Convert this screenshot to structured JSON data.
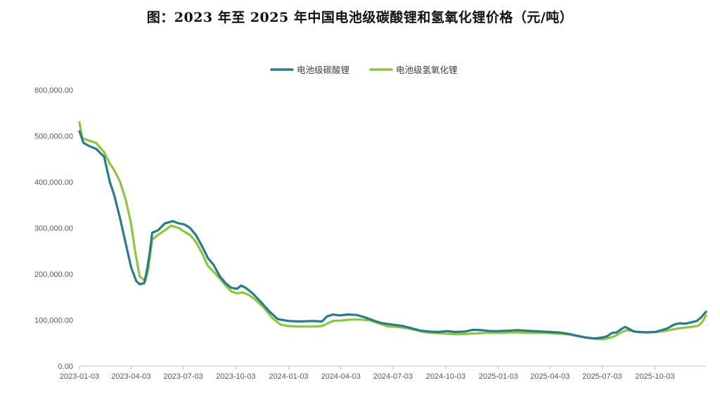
{
  "title": "图：2023 年至 2025 年中国电池级碳酸锂和氢氧化锂价格（元/吨）",
  "chart_data": {
    "type": "line",
    "title": "图：2023 年至 2025 年中国电池级碳酸锂和氢氧化锂价格（元/吨）",
    "xlabel": "",
    "ylabel": "",
    "ylim": [
      0,
      600000
    ],
    "yticks": [
      "0.00",
      "100,000.00",
      "200,000.00",
      "300,000.00",
      "400,000.00",
      "500,000.00",
      "600,000.00"
    ],
    "xticks": [
      "2023-01-03",
      "2023-04-03",
      "2023-07-03",
      "2023-10-03",
      "2024-01-03",
      "2024-04-03",
      "2024-07-03",
      "2024-10-03",
      "2025-01-03",
      "2025-04-03",
      "2025-07-03",
      "2025-10-03"
    ],
    "x_range": [
      "2023-01-03",
      "2025-12-31"
    ],
    "grid": false,
    "legend_position": "top-center",
    "series": [
      {
        "name": "电池级碳酸锂",
        "color": "#2a7a8c",
        "points": [
          [
            "2023-01-03",
            510000
          ],
          [
            "2023-01-10",
            485000
          ],
          [
            "2023-01-20",
            478000
          ],
          [
            "2023-02-01",
            472000
          ],
          [
            "2023-02-15",
            455000
          ],
          [
            "2023-02-25",
            400000
          ],
          [
            "2023-03-05",
            370000
          ],
          [
            "2023-03-15",
            320000
          ],
          [
            "2023-03-25",
            265000
          ],
          [
            "2023-04-03",
            215000
          ],
          [
            "2023-04-12",
            185000
          ],
          [
            "2023-04-18",
            178000
          ],
          [
            "2023-04-26",
            180000
          ],
          [
            "2023-05-01",
            210000
          ],
          [
            "2023-05-06",
            250000
          ],
          [
            "2023-05-10",
            290000
          ],
          [
            "2023-05-20",
            295000
          ],
          [
            "2023-06-01",
            310000
          ],
          [
            "2023-06-15",
            315000
          ],
          [
            "2023-06-25",
            310000
          ],
          [
            "2023-07-05",
            308000
          ],
          [
            "2023-07-15",
            300000
          ],
          [
            "2023-07-25",
            285000
          ],
          [
            "2023-08-05",
            260000
          ],
          [
            "2023-08-15",
            235000
          ],
          [
            "2023-08-25",
            220000
          ],
          [
            "2023-09-05",
            195000
          ],
          [
            "2023-09-15",
            180000
          ],
          [
            "2023-09-25",
            170000
          ],
          [
            "2023-10-05",
            168000
          ],
          [
            "2023-10-12",
            175000
          ],
          [
            "2023-10-20",
            170000
          ],
          [
            "2023-11-01",
            158000
          ],
          [
            "2023-11-15",
            140000
          ],
          [
            "2023-12-01",
            118000
          ],
          [
            "2023-12-15",
            102000
          ],
          [
            "2024-01-03",
            98000
          ],
          [
            "2024-01-20",
            97000
          ],
          [
            "2024-02-15",
            98000
          ],
          [
            "2024-03-01",
            97000
          ],
          [
            "2024-03-10",
            108000
          ],
          [
            "2024-03-20",
            112000
          ],
          [
            "2024-04-01",
            110000
          ],
          [
            "2024-04-15",
            112000
          ],
          [
            "2024-05-01",
            111000
          ],
          [
            "2024-05-15",
            106000
          ],
          [
            "2024-06-01",
            98000
          ],
          [
            "2024-06-15",
            93000
          ],
          [
            "2024-07-03",
            90000
          ],
          [
            "2024-07-20",
            87000
          ],
          [
            "2024-08-05",
            82000
          ],
          [
            "2024-08-20",
            77000
          ],
          [
            "2024-09-05",
            75000
          ],
          [
            "2024-09-20",
            74000
          ],
          [
            "2024-10-05",
            76000
          ],
          [
            "2024-10-20",
            74000
          ],
          [
            "2024-11-05",
            75000
          ],
          [
            "2024-11-20",
            79000
          ],
          [
            "2024-12-05",
            78000
          ],
          [
            "2024-12-20",
            76000
          ],
          [
            "2025-01-03",
            76000
          ],
          [
            "2025-01-20",
            77000
          ],
          [
            "2025-02-05",
            78000
          ],
          [
            "2025-02-20",
            77000
          ],
          [
            "2025-03-05",
            76000
          ],
          [
            "2025-03-20",
            75000
          ],
          [
            "2025-04-03",
            74000
          ],
          [
            "2025-04-20",
            73000
          ],
          [
            "2025-05-05",
            70000
          ],
          [
            "2025-05-20",
            66000
          ],
          [
            "2025-06-05",
            62000
          ],
          [
            "2025-06-20",
            60000
          ],
          [
            "2025-07-03",
            62000
          ],
          [
            "2025-07-12",
            65000
          ],
          [
            "2025-07-20",
            72000
          ],
          [
            "2025-07-28",
            73000
          ],
          [
            "2025-08-05",
            80000
          ],
          [
            "2025-08-12",
            85000
          ],
          [
            "2025-08-20",
            80000
          ],
          [
            "2025-08-28",
            75000
          ],
          [
            "2025-09-05",
            74000
          ],
          [
            "2025-09-20",
            73000
          ],
          [
            "2025-10-03",
            74000
          ],
          [
            "2025-10-15",
            78000
          ],
          [
            "2025-10-25",
            82000
          ],
          [
            "2025-11-05",
            90000
          ],
          [
            "2025-11-15",
            93000
          ],
          [
            "2025-11-25",
            92000
          ],
          [
            "2025-12-05",
            95000
          ],
          [
            "2025-12-15",
            98000
          ],
          [
            "2025-12-22",
            105000
          ],
          [
            "2025-12-31",
            118000
          ]
        ]
      },
      {
        "name": "电池级氢氧化锂",
        "color": "#8cc63f",
        "points": [
          [
            "2023-01-03",
            530000
          ],
          [
            "2023-01-08",
            495000
          ],
          [
            "2023-01-20",
            490000
          ],
          [
            "2023-02-01",
            485000
          ],
          [
            "2023-02-15",
            465000
          ],
          [
            "2023-02-25",
            440000
          ],
          [
            "2023-03-05",
            425000
          ],
          [
            "2023-03-15",
            400000
          ],
          [
            "2023-03-25",
            360000
          ],
          [
            "2023-04-03",
            310000
          ],
          [
            "2023-04-10",
            250000
          ],
          [
            "2023-04-18",
            195000
          ],
          [
            "2023-04-28",
            185000
          ],
          [
            "2023-05-03",
            210000
          ],
          [
            "2023-05-06",
            240000
          ],
          [
            "2023-05-10",
            275000
          ],
          [
            "2023-05-20",
            285000
          ],
          [
            "2023-06-01",
            295000
          ],
          [
            "2023-06-12",
            305000
          ],
          [
            "2023-06-25",
            300000
          ],
          [
            "2023-07-05",
            292000
          ],
          [
            "2023-07-15",
            285000
          ],
          [
            "2023-07-25",
            270000
          ],
          [
            "2023-08-05",
            245000
          ],
          [
            "2023-08-15",
            218000
          ],
          [
            "2023-08-25",
            205000
          ],
          [
            "2023-09-05",
            190000
          ],
          [
            "2023-09-15",
            175000
          ],
          [
            "2023-09-25",
            162000
          ],
          [
            "2023-10-05",
            158000
          ],
          [
            "2023-10-15",
            160000
          ],
          [
            "2023-10-25",
            155000
          ],
          [
            "2023-11-05",
            145000
          ],
          [
            "2023-11-20",
            128000
          ],
          [
            "2023-12-05",
            105000
          ],
          [
            "2023-12-20",
            90000
          ],
          [
            "2024-01-03",
            87000
          ],
          [
            "2024-01-20",
            86000
          ],
          [
            "2024-02-15",
            86000
          ],
          [
            "2024-03-01",
            87000
          ],
          [
            "2024-03-10",
            92000
          ],
          [
            "2024-03-20",
            98000
          ],
          [
            "2024-04-03",
            99000
          ],
          [
            "2024-04-20",
            101000
          ],
          [
            "2024-05-10",
            101000
          ],
          [
            "2024-05-25",
            99000
          ],
          [
            "2024-06-10",
            92000
          ],
          [
            "2024-06-25",
            86000
          ],
          [
            "2024-07-10",
            85000
          ],
          [
            "2024-07-25",
            83000
          ],
          [
            "2024-08-10",
            79000
          ],
          [
            "2024-08-25",
            74000
          ],
          [
            "2024-09-10",
            72000
          ],
          [
            "2024-09-25",
            71000
          ],
          [
            "2024-10-10",
            70000
          ],
          [
            "2024-10-25",
            69000
          ],
          [
            "2024-11-10",
            70000
          ],
          [
            "2024-11-25",
            71000
          ],
          [
            "2024-12-10",
            72000
          ],
          [
            "2024-12-25",
            72000
          ],
          [
            "2025-01-10",
            72000
          ],
          [
            "2025-01-25",
            73000
          ],
          [
            "2025-02-10",
            73000
          ],
          [
            "2025-02-25",
            72000
          ],
          [
            "2025-03-10",
            72000
          ],
          [
            "2025-03-25",
            72000
          ],
          [
            "2025-04-10",
            71000
          ],
          [
            "2025-04-25",
            70000
          ],
          [
            "2025-05-10",
            68000
          ],
          [
            "2025-05-25",
            64000
          ],
          [
            "2025-06-10",
            61000
          ],
          [
            "2025-06-25",
            59000
          ],
          [
            "2025-07-05",
            58000
          ],
          [
            "2025-07-15",
            61000
          ],
          [
            "2025-07-25",
            65000
          ],
          [
            "2025-08-05",
            73000
          ],
          [
            "2025-08-15",
            78000
          ],
          [
            "2025-08-25",
            76000
          ],
          [
            "2025-09-05",
            74000
          ],
          [
            "2025-09-20",
            74000
          ],
          [
            "2025-10-05",
            74000
          ],
          [
            "2025-10-20",
            76000
          ],
          [
            "2025-11-05",
            80000
          ],
          [
            "2025-11-20",
            83000
          ],
          [
            "2025-12-05",
            85000
          ],
          [
            "2025-12-18",
            88000
          ],
          [
            "2025-12-25",
            96000
          ],
          [
            "2025-12-31",
            110000
          ]
        ]
      }
    ]
  }
}
